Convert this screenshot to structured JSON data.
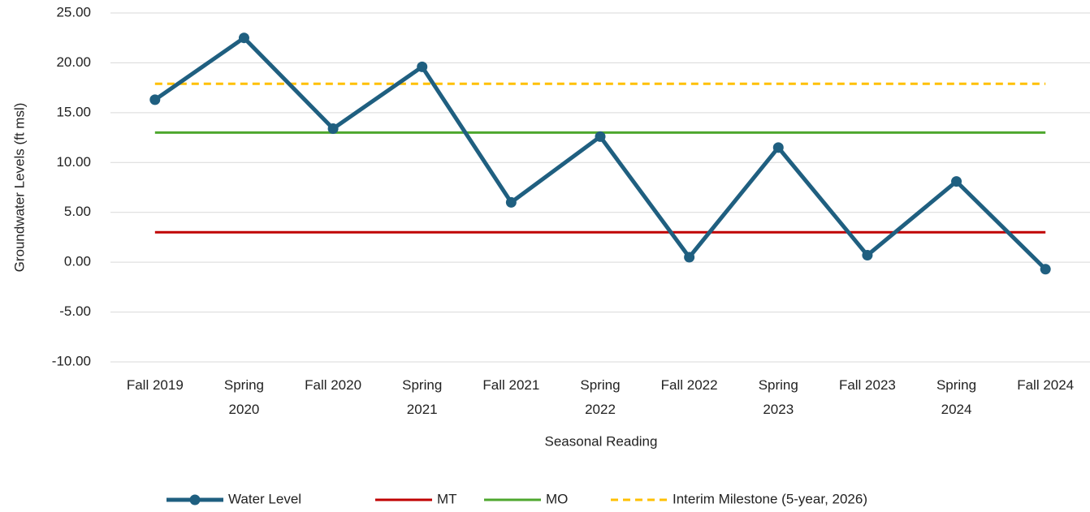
{
  "chart_data": {
    "type": "line",
    "x_label": "Seasonal Reading",
    "y_label": "Groundwater Levels (ft msl)",
    "categories": [
      "Fall 2019",
      "Spring 2020",
      "Fall 2020",
      "Spring 2021",
      "Fall 2021",
      "Spring 2022",
      "Fall 2022",
      "Spring 2023",
      "Fall 2023",
      "Spring 2024",
      "Fall 2024"
    ],
    "series": [
      {
        "name": "Water Level",
        "color": "#1f5f80",
        "marker": true,
        "dashed": false,
        "values": [
          16.3,
          22.5,
          13.4,
          19.6,
          6.0,
          12.6,
          0.5,
          11.5,
          0.7,
          8.1,
          -0.7
        ]
      },
      {
        "name": "MT",
        "color": "#c00000",
        "marker": false,
        "dashed": false,
        "values": [
          3.0,
          3.0,
          3.0,
          3.0,
          3.0,
          3.0,
          3.0,
          3.0,
          3.0,
          3.0,
          3.0
        ]
      },
      {
        "name": "MO",
        "color": "#4ea72e",
        "marker": false,
        "dashed": false,
        "values": [
          13.0,
          13.0,
          13.0,
          13.0,
          13.0,
          13.0,
          13.0,
          13.0,
          13.0,
          13.0,
          13.0
        ]
      },
      {
        "name": "Interim Milestone (5-year, 2026)",
        "color": "#ffc000",
        "marker": false,
        "dashed": true,
        "values": [
          17.9,
          17.9,
          17.9,
          17.9,
          17.9,
          17.9,
          17.9,
          17.9,
          17.9,
          17.9,
          17.9
        ]
      }
    ],
    "ylim": [
      -10,
      25
    ],
    "yticks": [
      {
        "value": -10,
        "label": "-10.00"
      },
      {
        "value": -5,
        "label": "-5.00"
      },
      {
        "value": 0,
        "label": "0.00"
      },
      {
        "value": 5,
        "label": "5.00"
      },
      {
        "value": 10,
        "label": "10.00"
      },
      {
        "value": 15,
        "label": "15.00"
      },
      {
        "value": 20,
        "label": "20.00"
      },
      {
        "value": 25,
        "label": "25.00"
      }
    ],
    "grid": true,
    "legend": "bottom"
  }
}
